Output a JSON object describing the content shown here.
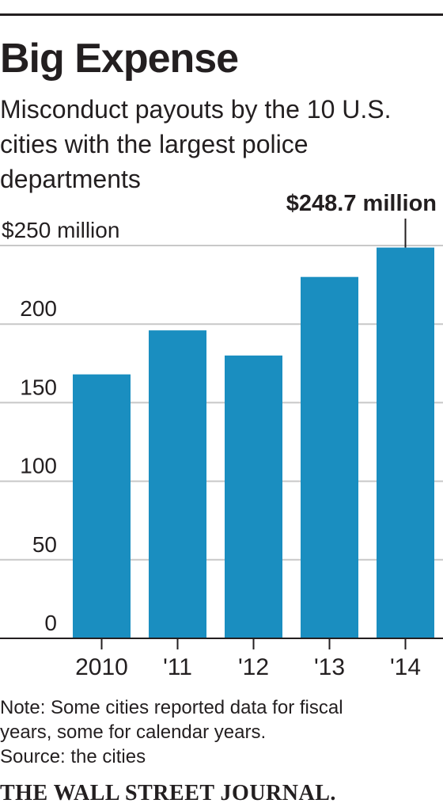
{
  "title": "Big Expense",
  "subtitle": "Misconduct payouts by the 10 U.S. cities with the largest police departments",
  "chart_data": {
    "type": "bar",
    "categories": [
      "2010",
      "'11",
      "'12",
      "'13",
      "'14"
    ],
    "values": [
      168,
      196,
      180,
      230,
      248.7
    ],
    "ylim": [
      0,
      250
    ],
    "yticks": [
      0,
      50,
      100,
      150,
      200,
      250
    ],
    "ytick_labels": [
      "0",
      "50",
      "100",
      "150",
      "200",
      "$250 million"
    ],
    "annotation": {
      "category": "'14",
      "text": "$248.7 million"
    },
    "bar_color": "#1a8ec0",
    "grid": true,
    "gridline_color": "#c8c8c8",
    "axis_color": "#231f20"
  },
  "notes": [
    "Note: Some cities reported data for fiscal",
    "years, some for calendar years.",
    "Source: the cities"
  ],
  "credit": "THE WALL STREET JOURNAL."
}
